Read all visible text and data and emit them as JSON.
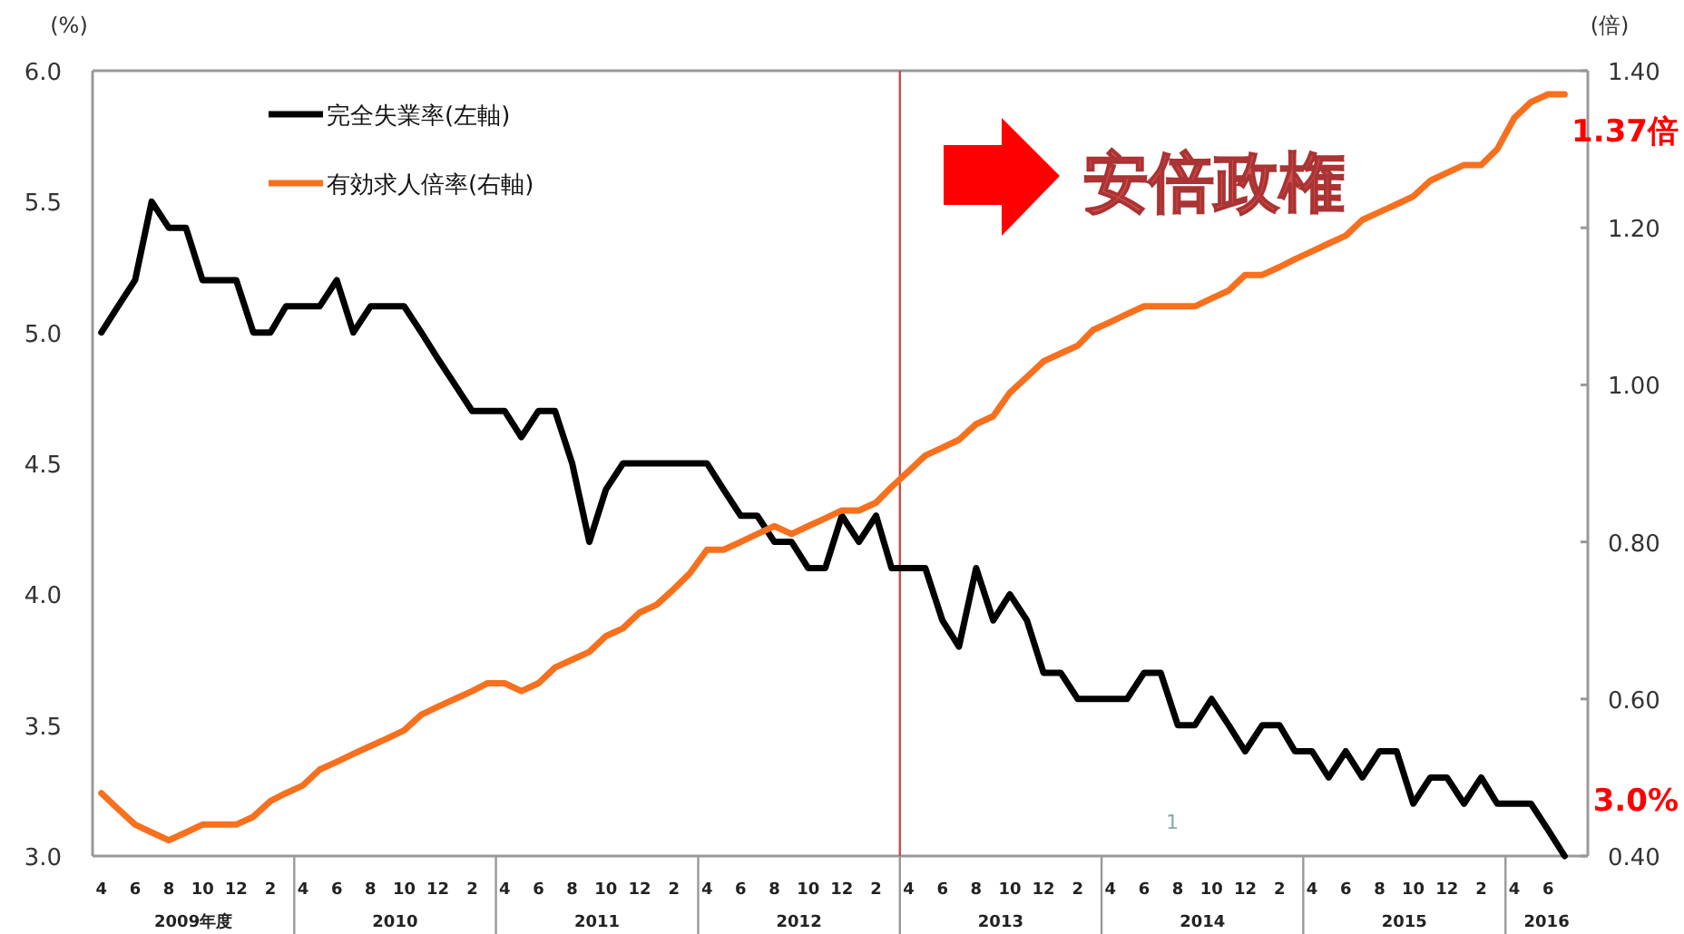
{
  "chart_data": {
    "type": "line",
    "ylabel": "(%)",
    "y2label": "(倍)",
    "legend": "top left",
    "x": [
      "2009-04",
      "2009-05",
      "2009-06",
      "2009-07",
      "2009-08",
      "2009-09",
      "2009-10",
      "2009-11",
      "2009-12",
      "2010-01",
      "2010-02",
      "2010-03",
      "2010-04",
      "2010-05",
      "2010-06",
      "2010-07",
      "2010-08",
      "2010-09",
      "2010-10",
      "2010-11",
      "2010-12",
      "2011-01",
      "2011-02",
      "2011-03",
      "2011-04",
      "2011-05",
      "2011-06",
      "2011-07",
      "2011-08",
      "2011-09",
      "2011-10",
      "2011-11",
      "2011-12",
      "2012-01",
      "2012-02",
      "2012-03",
      "2012-04",
      "2012-05",
      "2012-06",
      "2012-07",
      "2012-08",
      "2012-09",
      "2012-10",
      "2012-11",
      "2012-12",
      "2013-01",
      "2013-02",
      "2013-03",
      "2013-04",
      "2013-05",
      "2013-06",
      "2013-07",
      "2013-08",
      "2013-09",
      "2013-10",
      "2013-11",
      "2013-12",
      "2014-01",
      "2014-02",
      "2014-03",
      "2014-04",
      "2014-05",
      "2014-06",
      "2014-07",
      "2014-08",
      "2014-09",
      "2014-10",
      "2014-11",
      "2014-12",
      "2015-01",
      "2015-02",
      "2015-03",
      "2015-04",
      "2015-05",
      "2015-06",
      "2015-07",
      "2015-08",
      "2015-09",
      "2015-10",
      "2015-11",
      "2015-12",
      "2016-01",
      "2016-02",
      "2016-03",
      "2016-04",
      "2016-05",
      "2016-06",
      "2016-07"
    ],
    "xlim": [
      "2009-03-16",
      "2016-08-12"
    ],
    "xticks": [
      {
        "value": "2009-04",
        "label": "4"
      },
      {
        "value": "2009-06",
        "label": "6"
      },
      {
        "value": "2009-08",
        "label": "8"
      },
      {
        "value": "2009-10",
        "label": "10"
      },
      {
        "value": "2009-12",
        "label": "12"
      },
      {
        "value": "2010-02",
        "label": "2"
      },
      {
        "value": "2010-04",
        "label": "4"
      },
      {
        "value": "2010-06",
        "label": "6"
      },
      {
        "value": "2010-08",
        "label": "8"
      },
      {
        "value": "2010-10",
        "label": "10"
      },
      {
        "value": "2010-12",
        "label": "12"
      },
      {
        "value": "2011-02",
        "label": "2"
      },
      {
        "value": "2011-04",
        "label": "4"
      },
      {
        "value": "2011-06",
        "label": "6"
      },
      {
        "value": "2011-08",
        "label": "8"
      },
      {
        "value": "2011-10",
        "label": "10"
      },
      {
        "value": "2011-12",
        "label": "12"
      },
      {
        "value": "2012-02",
        "label": "2"
      },
      {
        "value": "2012-04",
        "label": "4"
      },
      {
        "value": "2012-06",
        "label": "6"
      },
      {
        "value": "2012-08",
        "label": "8"
      },
      {
        "value": "2012-10",
        "label": "10"
      },
      {
        "value": "2012-12",
        "label": "12"
      },
      {
        "value": "2013-02",
        "label": "2"
      },
      {
        "value": "2013-04",
        "label": "4"
      },
      {
        "value": "2013-06",
        "label": "6"
      },
      {
        "value": "2013-08",
        "label": "8"
      },
      {
        "value": "2013-10",
        "label": "10"
      },
      {
        "value": "2013-12",
        "label": "12"
      },
      {
        "value": "2014-02",
        "label": "2"
      },
      {
        "value": "2014-04",
        "label": "4"
      },
      {
        "value": "2014-06",
        "label": "6"
      },
      {
        "value": "2014-08",
        "label": "8"
      },
      {
        "value": "2014-10",
        "label": "10"
      },
      {
        "value": "2014-12",
        "label": "12"
      },
      {
        "value": "2015-02",
        "label": "2"
      },
      {
        "value": "2015-04",
        "label": "4"
      },
      {
        "value": "2015-06",
        "label": "6"
      },
      {
        "value": "2015-08",
        "label": "8"
      },
      {
        "value": "2015-10",
        "label": "10"
      },
      {
        "value": "2015-12",
        "label": "12"
      },
      {
        "value": "2016-02",
        "label": "2"
      },
      {
        "value": "2016-04",
        "label": "4"
      },
      {
        "value": "2016-06",
        "label": "6"
      }
    ],
    "ylim": [
      3,
      6
    ],
    "yticks": [
      {
        "value": 3,
        "label": "3.0"
      },
      {
        "value": 3.5,
        "label": "3.5"
      },
      {
        "value": 4,
        "label": "4.0"
      },
      {
        "value": 4.5,
        "label": "4.5"
      },
      {
        "value": 5,
        "label": "5.0"
      },
      {
        "value": 5.5,
        "label": "5.5"
      },
      {
        "value": 6,
        "label": "6.0"
      }
    ],
    "y2lim": [
      0.4,
      1.4
    ],
    "y2ticks": [
      {
        "value": 0.4,
        "label": "0.40"
      },
      {
        "value": 0.6,
        "label": "0.60"
      },
      {
        "value": 0.8,
        "label": "0.80"
      },
      {
        "value": 1.0,
        "label": "1.00"
      },
      {
        "value": 1.2,
        "label": "1.20"
      },
      {
        "value": 1.4,
        "label": "1.40"
      }
    ],
    "series": [
      {
        "name": "完全失業率(左軸)",
        "color": "#000000",
        "values": [
          5.0,
          5.1,
          5.2,
          5.5,
          5.4,
          5.4,
          5.2,
          5.2,
          5.2,
          5.0,
          5.0,
          5.1,
          5.1,
          5.1,
          5.2,
          5.0,
          5.1,
          5.1,
          5.1,
          5.0,
          4.9,
          4.8,
          4.7,
          4.7,
          4.7,
          4.6,
          4.7,
          4.7,
          4.5,
          4.2,
          4.4,
          4.5,
          4.5,
          4.5,
          4.5,
          4.5,
          4.5,
          4.4,
          4.3,
          4.3,
          4.2,
          4.2,
          4.1,
          4.1,
          4.3,
          4.2,
          4.3,
          4.1,
          4.1,
          4.1,
          3.9,
          3.8,
          4.1,
          3.9,
          4.0,
          3.9,
          3.7,
          3.7,
          3.6,
          3.6,
          3.6,
          3.6,
          3.7,
          3.7,
          3.5,
          3.5,
          3.6,
          3.5,
          3.4,
          3.5,
          3.5,
          3.4,
          3.4,
          3.3,
          3.4,
          3.3,
          3.4,
          3.4,
          3.2,
          3.3,
          3.3,
          3.2,
          3.3,
          3.2,
          3.2,
          3.2,
          3.1,
          3.0
        ]
      },
      {
        "name": "有効求人倍率(右軸)",
        "color": "#f7701e",
        "axis": "y2",
        "values": [
          0.48,
          0.46,
          0.44,
          0.43,
          0.42,
          0.43,
          0.44,
          0.44,
          0.44,
          0.45,
          0.47,
          0.48,
          0.49,
          0.51,
          0.52,
          0.53,
          0.54,
          0.55,
          0.56,
          0.58,
          0.59,
          0.6,
          0.61,
          0.62,
          0.62,
          0.61,
          0.62,
          0.64,
          0.65,
          0.66,
          0.68,
          0.69,
          0.71,
          0.72,
          0.74,
          0.76,
          0.79,
          0.79,
          0.8,
          0.81,
          0.82,
          0.81,
          0.82,
          0.83,
          0.84,
          0.84,
          0.85,
          0.87,
          0.89,
          0.91,
          0.92,
          0.93,
          0.95,
          0.96,
          0.99,
          1.01,
          1.03,
          1.04,
          1.05,
          1.07,
          1.08,
          1.09,
          1.1,
          1.1,
          1.1,
          1.1,
          1.11,
          1.12,
          1.14,
          1.14,
          1.15,
          1.16,
          1.17,
          1.18,
          1.19,
          1.21,
          1.22,
          1.23,
          1.24,
          1.26,
          1.27,
          1.28,
          1.28,
          1.3,
          1.34,
          1.36,
          1.37,
          1.37
        ]
      }
    ],
    "ref_lines": [
      {
        "axis": "x",
        "value": "2013-03-16",
        "color": "#c0504d"
      }
    ],
    "annotations": [
      "安倍政権",
      "1",
      "3.0%",
      "1.37倍",
      "2009年度",
      "2010",
      "2011",
      "2012",
      "2013",
      "2014",
      "2015",
      "2016"
    ]
  }
}
